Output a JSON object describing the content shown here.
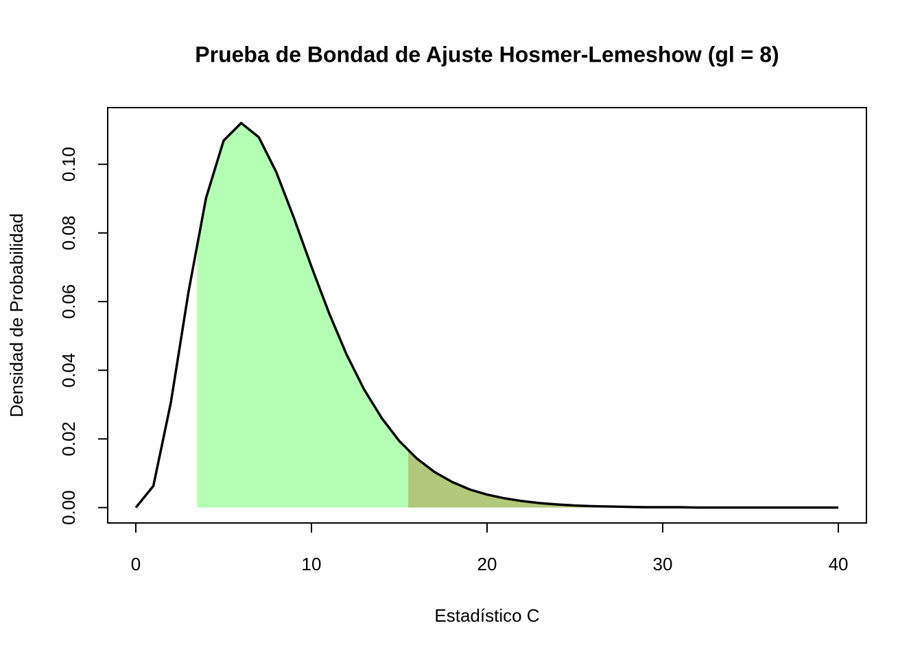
{
  "chart_data": {
    "type": "line",
    "title": "Prueba de Bondad de Ajuste Hosmer-Lemeshow (gl = 8)",
    "x_label": "Estadístico C",
    "y_label": "Densidad de Probabilidad",
    "x": [
      0,
      1,
      2,
      3,
      4,
      5,
      6,
      7,
      8,
      9,
      10,
      11,
      12,
      13,
      14,
      15,
      16,
      17,
      18,
      19,
      20,
      21,
      22,
      23,
      24,
      25,
      26,
      27,
      28,
      29,
      30,
      31,
      32,
      33,
      34,
      35,
      36,
      37,
      38,
      39,
      40
    ],
    "values": [
      0,
      0.0063,
      0.0307,
      0.0628,
      0.0902,
      0.1069,
      0.112,
      0.1079,
      0.0977,
      0.0844,
      0.0702,
      0.0567,
      0.0446,
      0.0344,
      0.0261,
      0.0194,
      0.0143,
      0.0104,
      0.0075,
      0.0053,
      0.0038,
      0.0027,
      0.0019,
      0.0013,
      0.0009,
      0.0006,
      0.0004,
      0.0003,
      0.0002,
      0.0001,
      0.0001,
      0.0001,
      0,
      0,
      0,
      0,
      0,
      0,
      0,
      0,
      0
    ],
    "color": "#000000",
    "areas": [
      {
        "from": 3.49,
        "to": 15.51,
        "color": "#b3ffb3"
      },
      {
        "from": 15.51,
        "to": 40,
        "color": "#b2c87a"
      }
    ],
    "xlim": [
      -1.6,
      41.6
    ],
    "ylim": [
      -0.00448,
      0.1165
    ],
    "xticks": [
      0,
      10,
      20,
      30,
      40
    ],
    "yticks": [
      {
        "value": 0,
        "label": "0.00"
      },
      {
        "value": 0.02,
        "label": "0.02"
      },
      {
        "value": 0.04,
        "label": "0.04"
      },
      {
        "value": 0.06,
        "label": "0.06"
      },
      {
        "value": 0.08,
        "label": "0.08"
      },
      {
        "value": 0.1,
        "label": "0.10"
      }
    ],
    "grid": false
  }
}
